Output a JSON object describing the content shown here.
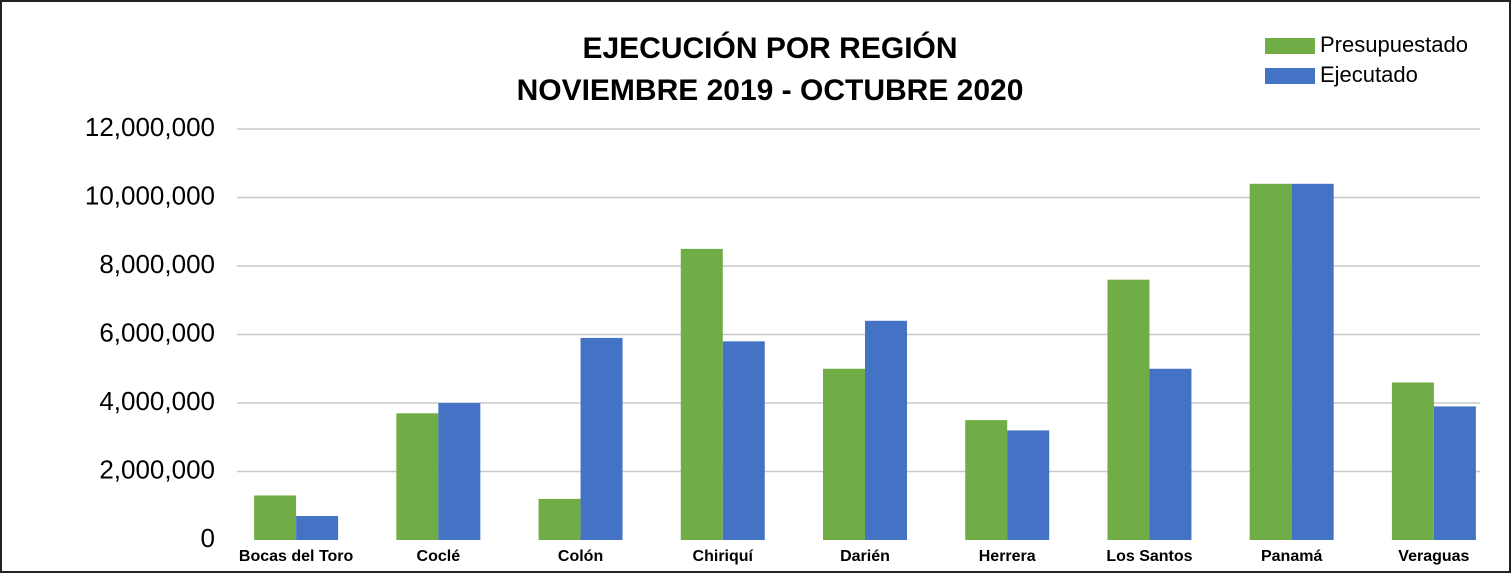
{
  "chart_data": {
    "type": "bar",
    "title": "EJECUCIÓN POR REGIÓN",
    "subtitle": "NOVIEMBRE 2019 - OCTUBRE 2020",
    "categories": [
      "Bocas del Toro",
      "Coclé",
      "Colón",
      "Chiriquí",
      "Darién",
      "Herrera",
      "Los Santos",
      "Panamá",
      "Veraguas"
    ],
    "series": [
      {
        "name": "Presupuestado",
        "color": "#70ad47",
        "values": [
          1300000,
          3700000,
          1200000,
          8500000,
          5000000,
          3500000,
          7600000,
          10400000,
          4600000
        ]
      },
      {
        "name": "Ejecutado",
        "color": "#4472c4",
        "values": [
          700000,
          4000000,
          5900000,
          5800000,
          6400000,
          3200000,
          5000000,
          10400000,
          3900000
        ]
      }
    ],
    "ylim": [
      0,
      12000000
    ],
    "yticks": [
      0,
      {
        "value": 2000000,
        "label": "2,000,000"
      },
      {
        "value": 4000000,
        "label": "4,000,000"
      },
      {
        "value": 6000000,
        "label": "6,000,000"
      },
      {
        "value": 8000000,
        "label": "8,000,000"
      },
      {
        "value": 10000000,
        "label": "10,000,000"
      },
      {
        "value": 12000000,
        "label": "12,000,000"
      }
    ],
    "grid": true,
    "legend": "top-right"
  }
}
